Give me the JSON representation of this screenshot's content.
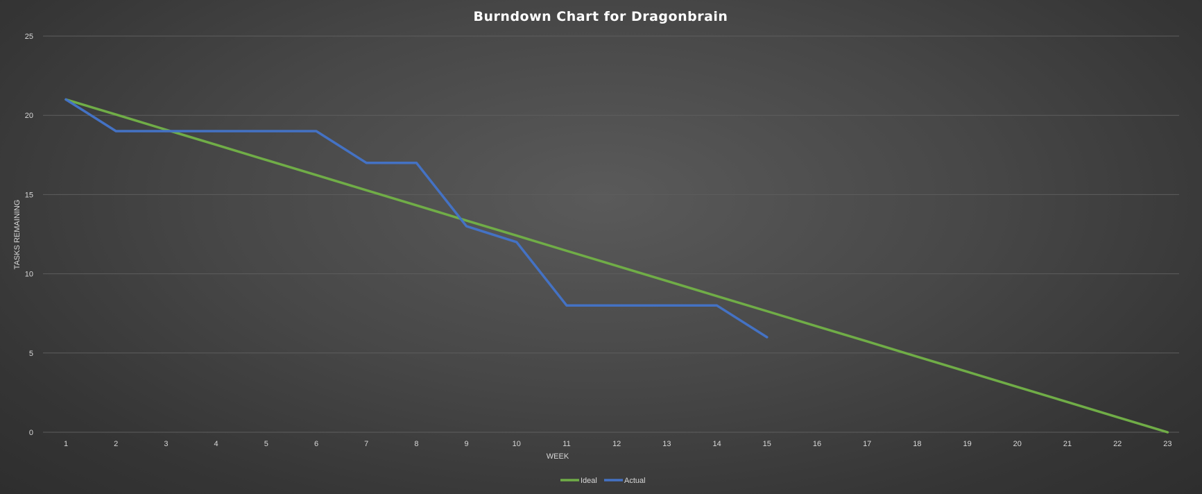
{
  "chart_data": {
    "type": "line",
    "title": "Burndown Chart for Dragonbrain",
    "xlabel": "WEEK",
    "ylabel": "TASKS REMAINING",
    "x": [
      1,
      2,
      3,
      4,
      5,
      6,
      7,
      8,
      9,
      10,
      11,
      12,
      13,
      14,
      15,
      16,
      17,
      18,
      19,
      20,
      21,
      22,
      23
    ],
    "xticks": [
      "1",
      "2",
      "3",
      "4",
      "5",
      "6",
      "7",
      "8",
      "9",
      "10",
      "11",
      "12",
      "13",
      "14",
      "15",
      "16",
      "17",
      "18",
      "19",
      "20",
      "21",
      "22",
      "23"
    ],
    "ylim": [
      0,
      25
    ],
    "yticks": [
      "0",
      "5",
      "10",
      "15",
      "20",
      "25"
    ],
    "grid": true,
    "legend_position": "bottom",
    "series": [
      {
        "name": "Ideal",
        "color": "#70ad47",
        "values": [
          21,
          20.05,
          19.09,
          18.14,
          17.18,
          16.23,
          15.27,
          14.32,
          13.36,
          12.41,
          11.45,
          10.5,
          9.55,
          8.59,
          7.64,
          6.68,
          5.73,
          4.77,
          3.82,
          2.86,
          1.91,
          0.95,
          0
        ]
      },
      {
        "name": "Actual",
        "color": "#4472c4",
        "values": [
          21,
          19,
          19,
          19,
          19,
          19,
          17,
          17,
          13,
          12,
          8,
          8,
          8,
          8,
          6,
          null,
          null,
          null,
          null,
          null,
          null,
          null,
          null
        ]
      }
    ]
  }
}
